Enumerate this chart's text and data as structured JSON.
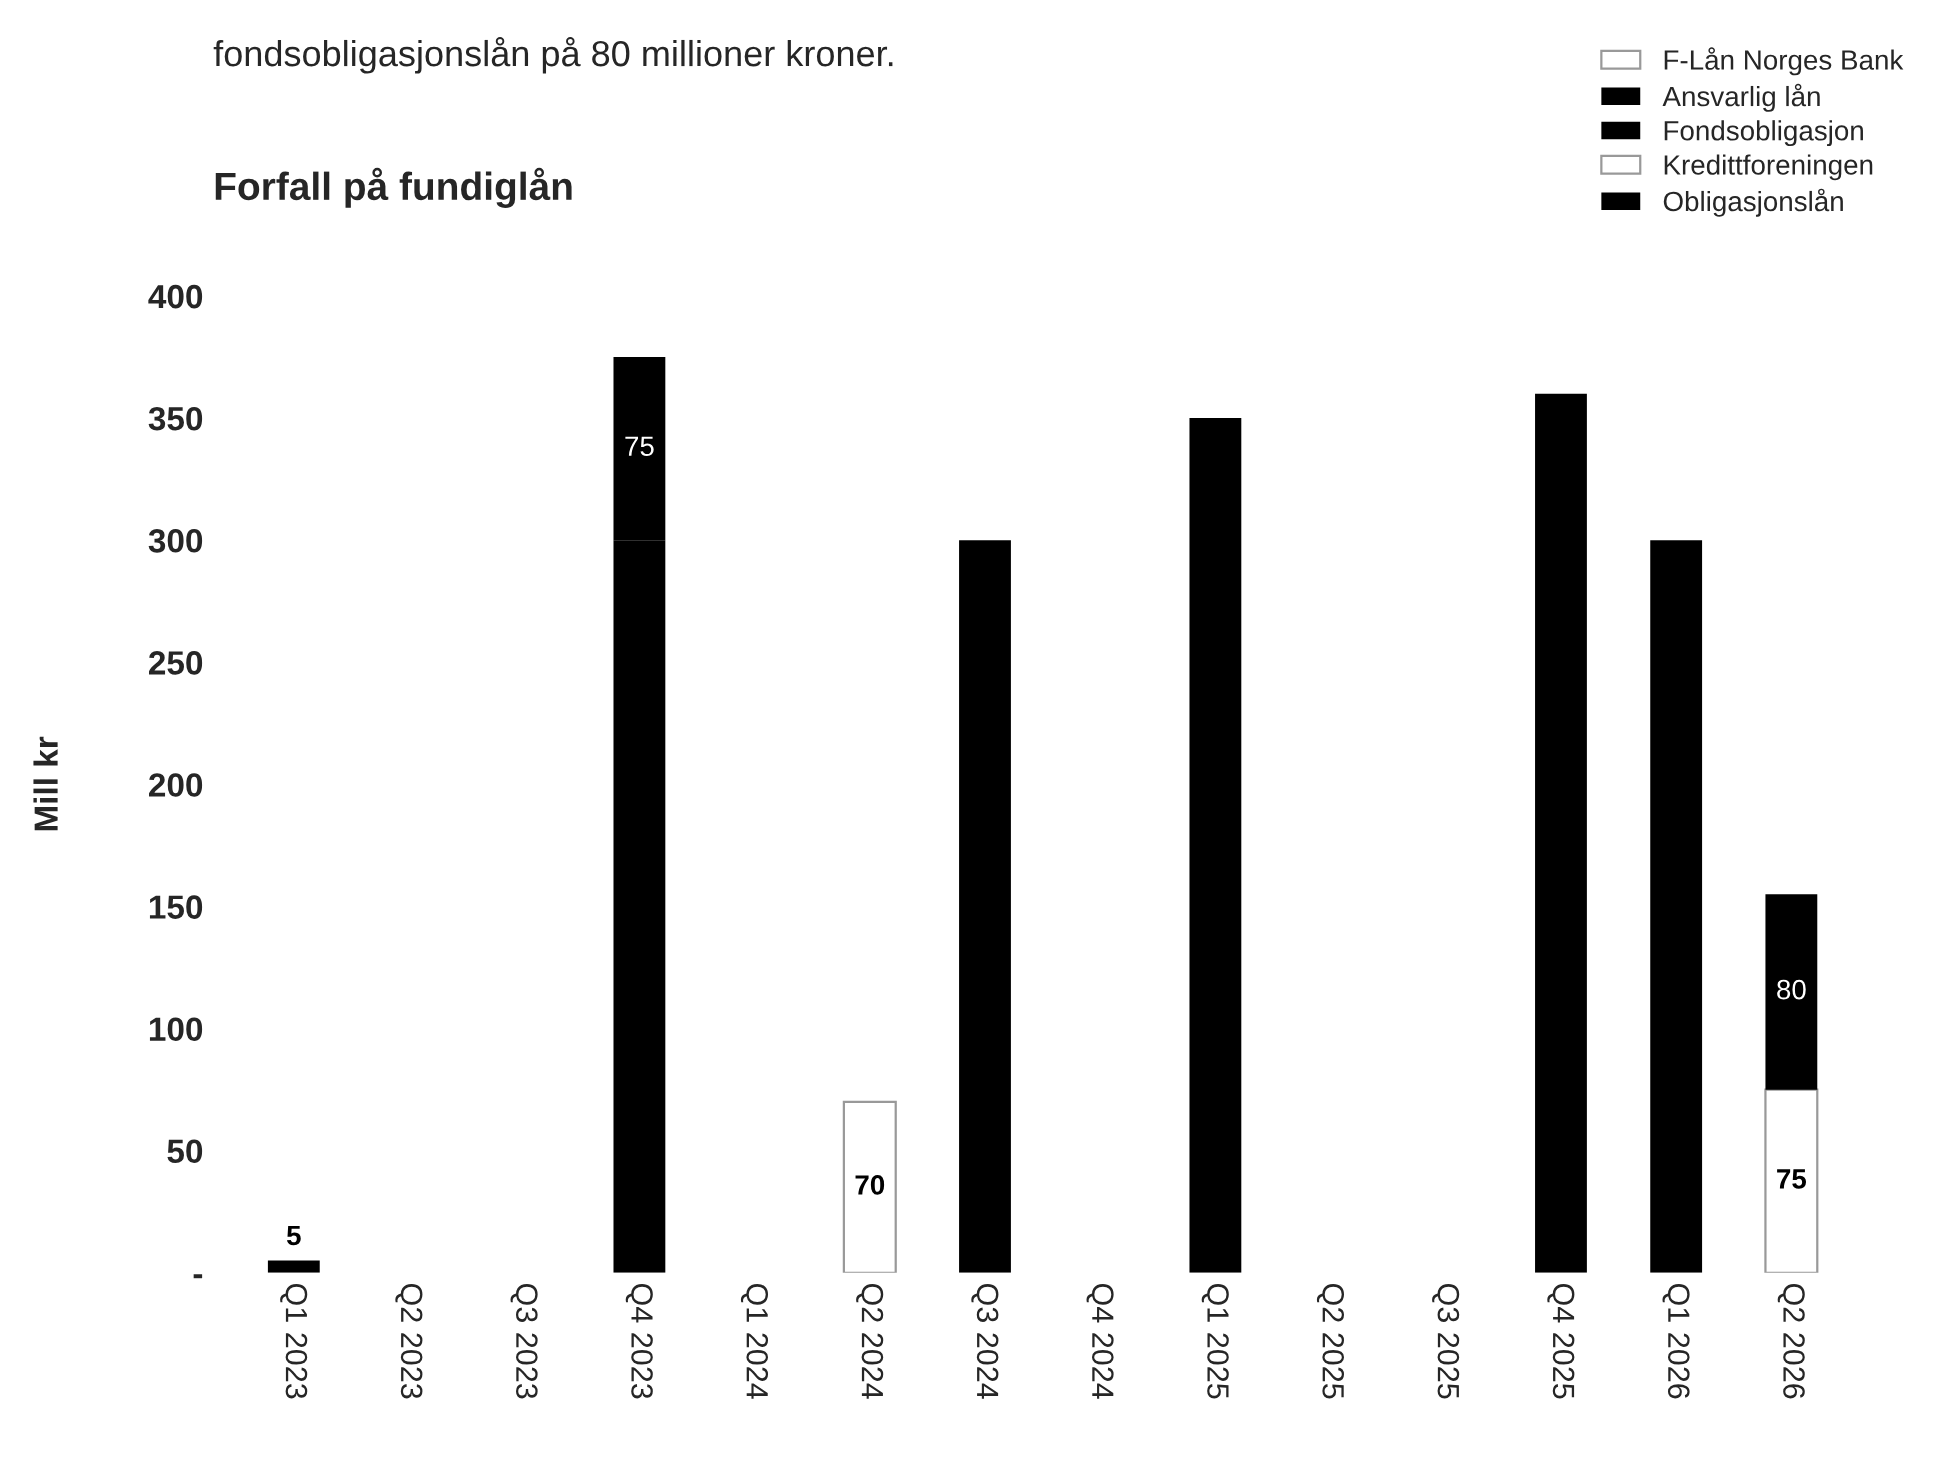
{
  "chart_data": {
    "type": "bar",
    "stacked": true,
    "title": "Forfall på fundiglån",
    "ylabel": "Mill kr",
    "annotations": [
      "fondsobligasjonslån på 80 millioner kroner."
    ],
    "categories": [
      "Q1 2023",
      "Q2 2023",
      "Q3 2023",
      "Q4 2023",
      "Q1 2024",
      "Q2 2024",
      "Q3 2024",
      "Q4 2024",
      "Q1 2025",
      "Q2 2025",
      "Q3 2025",
      "Q4 2025",
      "Q1 2026",
      "Q2 2026"
    ],
    "series": [
      {
        "name": "F-Lån Norges Bank",
        "color": "#ffffff",
        "values": [
          null,
          null,
          null,
          null,
          null,
          null,
          null,
          null,
          null,
          null,
          null,
          null,
          null,
          null
        ]
      },
      {
        "name": "Ansvarlig lån",
        "color": "#000000",
        "values": [
          null,
          null,
          null,
          300,
          null,
          null,
          300,
          null,
          350,
          null,
          null,
          360,
          300,
          null
        ]
      },
      {
        "name": "Fondsobligasjon",
        "color": "#000000",
        "values": [
          5,
          null,
          null,
          null,
          null,
          null,
          null,
          null,
          null,
          null,
          null,
          null,
          null,
          null
        ],
        "value_labels": [
          "5",
          null,
          null,
          null,
          null,
          null,
          null,
          null,
          null,
          null,
          null,
          null,
          null,
          null
        ]
      },
      {
        "name": "Kredittforeningen",
        "color": "#ffffff",
        "values": [
          null,
          null,
          null,
          null,
          null,
          70,
          null,
          null,
          null,
          null,
          null,
          null,
          null,
          75
        ],
        "value_labels": [
          null,
          null,
          null,
          null,
          null,
          "70",
          null,
          null,
          null,
          null,
          null,
          null,
          null,
          "75"
        ]
      },
      {
        "name": "Obligasjonslån",
        "color": "#000000",
        "values": [
          null,
          null,
          null,
          75,
          null,
          null,
          null,
          null,
          null,
          null,
          null,
          null,
          null,
          80
        ],
        "value_labels": [
          null,
          null,
          null,
          "75",
          null,
          null,
          null,
          null,
          null,
          null,
          null,
          null,
          null,
          "80"
        ]
      }
    ],
    "ylim": [
      0,
      400
    ],
    "yticks": [
      {
        "value": 0,
        "label": "-"
      },
      50,
      100,
      150,
      200,
      250,
      300,
      350,
      400
    ],
    "legend": "top right",
    "grid": false
  }
}
